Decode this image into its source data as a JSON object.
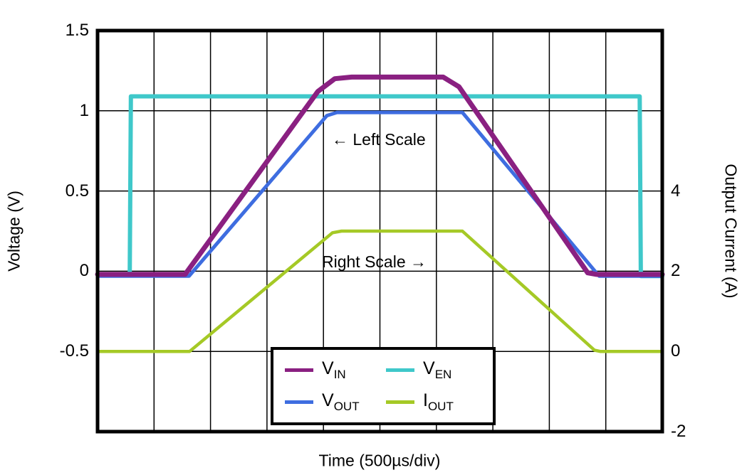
{
  "chart_data": {
    "type": "line",
    "title": "",
    "xlabel": "Time (500µs/div)",
    "ylabel_left": "Voltage (V)",
    "ylabel_right": "Output Current (A)",
    "grid": true,
    "x_axis": {
      "range_us": [
        0,
        5000
      ],
      "divisions": 10,
      "div_label": "500µs/div"
    },
    "left_axis": {
      "range": [
        -1.0,
        1.5
      ],
      "grid_step": 0.5,
      "ticks": [
        {
          "value": 1.5,
          "label": "1.5"
        },
        {
          "value": 1.0,
          "label": "1"
        },
        {
          "value": 0.5,
          "label": "0.5"
        },
        {
          "value": 0.0,
          "label": "0"
        },
        {
          "value": -0.5,
          "label": "-0.5"
        }
      ]
    },
    "right_axis": {
      "range": [
        -2,
        8
      ],
      "grid_step": 2,
      "ticks": [
        {
          "value": 4,
          "label": "4"
        },
        {
          "value": 2,
          "label": "2"
        },
        {
          "value": 0,
          "label": "0"
        },
        {
          "value": -2,
          "label": "-2"
        }
      ]
    },
    "annotations": [
      {
        "id": "left-scale",
        "text": "← Left Scale"
      },
      {
        "id": "right-scale",
        "text": "Right Scale →"
      }
    ],
    "series": [
      {
        "id": "ven",
        "name": "V_EN",
        "axis": "left",
        "color": "#3fc8ca",
        "width": 6,
        "points": [
          [
            0,
            -0.02
          ],
          [
            285,
            -0.02
          ],
          [
            295,
            1.09
          ],
          [
            4800,
            1.09
          ],
          [
            4810,
            -0.03
          ],
          [
            5000,
            -0.03
          ]
        ]
      },
      {
        "id": "iout",
        "name": "I_OUT",
        "axis": "right",
        "color": "#a5c926",
        "width": 4.5,
        "points": [
          [
            0,
            0
          ],
          [
            815,
            0
          ],
          [
            2080,
            2.96
          ],
          [
            2160,
            3.0
          ],
          [
            3230,
            3.0
          ],
          [
            4400,
            0.03
          ],
          [
            4450,
            0
          ],
          [
            5000,
            0
          ]
        ]
      },
      {
        "id": "vout",
        "name": "V_OUT",
        "axis": "left",
        "color": "#3e6de0",
        "width": 5,
        "points": [
          [
            0,
            -0.03
          ],
          [
            810,
            -0.03
          ],
          [
            2030,
            0.97
          ],
          [
            2120,
            0.99
          ],
          [
            3230,
            0.99
          ],
          [
            4440,
            -0.03
          ],
          [
            5000,
            -0.03
          ]
        ]
      },
      {
        "id": "vin",
        "name": "V_IN",
        "axis": "left",
        "color": "#8a2081",
        "width": 7,
        "points": [
          [
            0,
            -0.02
          ],
          [
            775,
            -0.02
          ],
          [
            1950,
            1.12
          ],
          [
            2100,
            1.2
          ],
          [
            2250,
            1.21
          ],
          [
            3060,
            1.21
          ],
          [
            3200,
            1.15
          ],
          [
            4340,
            -0.01
          ],
          [
            4420,
            -0.02
          ],
          [
            5000,
            -0.02
          ]
        ]
      }
    ],
    "legend": {
      "entries": [
        {
          "main": "V",
          "sub": "IN",
          "color": "#8a2081"
        },
        {
          "main": "V",
          "sub": "EN",
          "color": "#3fc8ca"
        },
        {
          "main": "V",
          "sub": "OUT",
          "color": "#3e6de0"
        },
        {
          "main": "I",
          "sub": "OUT",
          "color": "#a5c926"
        }
      ]
    }
  }
}
